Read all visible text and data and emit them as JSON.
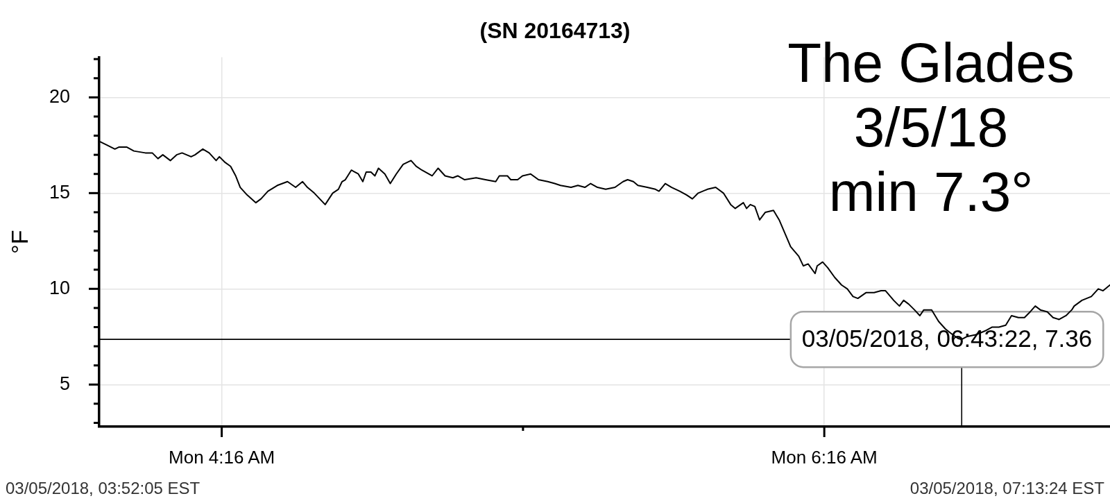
{
  "chart_data": {
    "type": "line",
    "title": "(SN 20164713)",
    "ylabel": "°F",
    "color": "#000000",
    "x": [
      "2018-03-05T03:51:40",
      "2018-03-05T03:53:13",
      "2018-03-05T03:54:43",
      "2018-03-05T03:55:30",
      "2018-03-05T03:57:07",
      "2018-03-05T03:58:30",
      "2018-03-05T04:00:47",
      "2018-03-05T04:02:10",
      "2018-03-05T04:03:18",
      "2018-03-05T04:04:16",
      "2018-03-05T04:05:46",
      "2018-03-05T04:07:01",
      "2018-03-05T04:08:06",
      "2018-03-05T04:09:54",
      "2018-03-05T04:10:41",
      "2018-03-05T04:12:14",
      "2018-03-05T04:13:30",
      "2018-03-05T04:14:53",
      "2018-03-05T04:15:32",
      "2018-03-05T04:16:41",
      "2018-03-05T04:17:46",
      "2018-03-05T04:18:47",
      "2018-03-05T04:19:41",
      "2018-03-05T04:21:04",
      "2018-03-05T04:22:48",
      "2018-03-05T04:23:49",
      "2018-03-05T04:25:12",
      "2018-03-05T04:27:04",
      "2018-03-05T04:29:06",
      "2018-03-05T04:30:43",
      "2018-03-05T04:32:06",
      "2018-03-05T04:33:04",
      "2018-03-05T04:34:26",
      "2018-03-05T04:36:36",
      "2018-03-05T04:38:06",
      "2018-03-05T04:39:14",
      "2018-03-05T04:39:58",
      "2018-03-05T04:40:37",
      "2018-03-05T04:41:49",
      "2018-03-05T04:43:12",
      "2018-03-05T04:44:06",
      "2018-03-05T04:44:46",
      "2018-03-05T04:45:43",
      "2018-03-05T04:46:30",
      "2018-03-05T04:47:13",
      "2018-03-05T04:48:29",
      "2018-03-05T04:49:34",
      "2018-03-05T04:50:46",
      "2018-03-05T04:52:08",
      "2018-03-05T04:53:42",
      "2018-03-05T04:54:43",
      "2018-03-05T04:55:52",
      "2018-03-05T04:57:54",
      "2018-03-05T04:59:06",
      "2018-03-05T05:00:29",
      "2018-03-05T05:02:02",
      "2018-03-05T05:03:00",
      "2018-03-05T05:04:23",
      "2018-03-05T05:06:40",
      "2018-03-05T05:08:31",
      "2018-03-05T05:10:34",
      "2018-03-05T05:11:17",
      "2018-03-05T05:12:54",
      "2018-03-05T05:13:34",
      "2018-03-05T05:14:56",
      "2018-03-05T05:15:54",
      "2018-03-05T05:17:31",
      "2018-03-05T05:19:05",
      "2018-03-05T05:20:56",
      "2018-03-05T05:22:19",
      "2018-03-05T05:23:28",
      "2018-03-05T05:25:34",
      "2018-03-05T05:26:56",
      "2018-03-05T05:28:19",
      "2018-03-05T05:29:28",
      "2018-03-05T05:30:50",
      "2018-03-05T05:32:28",
      "2018-03-05T05:34:19",
      "2018-03-05T05:35:56",
      "2018-03-05T05:36:50",
      "2018-03-05T05:37:59",
      "2018-03-05T05:38:53",
      "2018-03-05T05:40:44",
      "2018-03-05T05:42:22",
      "2018-03-05T05:43:05",
      "2018-03-05T05:44:20",
      "2018-03-05T05:45:36",
      "2018-03-05T05:47:13",
      "2018-03-05T05:48:36",
      "2018-03-05T05:49:44",
      "2018-03-05T05:50:53",
      "2018-03-05T05:52:44",
      "2018-03-05T05:54:22",
      "2018-03-05T05:55:55",
      "2018-03-05T05:57:22",
      "2018-03-05T05:58:16",
      "2018-03-05T05:59:53",
      "2018-03-05T06:00:32",
      "2018-03-05T06:01:16",
      "2018-03-05T06:02:10",
      "2018-03-05T06:03:07",
      "2018-03-05T06:04:16",
      "2018-03-05T06:05:53",
      "2018-03-05T06:07:01",
      "2018-03-05T06:08:10",
      "2018-03-05T06:09:18",
      "2018-03-05T06:10:55",
      "2018-03-05T06:11:49",
      "2018-03-05T06:12:47",
      "2018-03-05T06:14:10",
      "2018-03-05T06:14:35",
      "2018-03-05T06:15:40",
      "2018-03-05T06:16:41",
      "2018-03-05T06:18:04",
      "2018-03-05T06:19:26",
      "2018-03-05T06:20:35",
      "2018-03-05T06:21:43",
      "2018-03-05T06:22:41",
      "2018-03-05T06:24:18",
      "2018-03-05T06:25:55",
      "2018-03-05T06:27:18",
      "2018-03-05T06:28:12",
      "2018-03-05T06:29:49",
      "2018-03-05T06:30:58",
      "2018-03-05T06:31:48",
      "2018-03-05T06:32:49",
      "2018-03-05T06:33:58",
      "2018-03-05T06:35:02",
      "2018-03-05T06:35:49",
      "2018-03-05T06:37:23",
      "2018-03-05T06:38:46",
      "2018-03-05T06:40:08",
      "2018-03-05T06:41:35",
      "2018-03-05T06:42:43",
      "2018-03-05T06:43:22",
      "2018-03-05T06:44:20",
      "2018-03-05T06:46:08",
      "2018-03-05T06:47:06",
      "2018-03-05T06:48:00",
      "2018-03-05T06:49:23",
      "2018-03-05T06:50:46",
      "2018-03-05T06:52:08",
      "2018-03-05T06:53:17",
      "2018-03-05T06:54:40",
      "2018-03-05T06:55:52",
      "2018-03-05T06:57:00",
      "2018-03-05T06:58:01",
      "2018-03-05T06:59:02",
      "2018-03-05T07:00:25",
      "2018-03-05T07:01:34",
      "2018-03-05T07:02:46",
      "2018-03-05T07:04:08",
      "2018-03-05T07:05:17",
      "2018-03-05T07:05:46",
      "2018-03-05T07:07:19",
      "2018-03-05T07:09:11",
      "2018-03-05T07:10:34",
      "2018-03-05T07:11:31",
      "2018-03-05T07:12:54"
    ],
    "values": [
      17.7,
      17.5,
      17.3,
      17.4,
      17.4,
      17.2,
      17.1,
      17.1,
      16.8,
      17.0,
      16.7,
      17.0,
      17.1,
      16.9,
      17.0,
      17.3,
      17.1,
      16.7,
      16.9,
      16.6,
      16.4,
      15.9,
      15.3,
      14.9,
      14.5,
      14.7,
      15.1,
      15.4,
      15.6,
      15.3,
      15.6,
      15.3,
      15.0,
      14.4,
      15.0,
      15.2,
      15.6,
      15.7,
      16.2,
      16.0,
      15.6,
      16.1,
      16.1,
      15.9,
      16.3,
      16.0,
      15.5,
      16.0,
      16.5,
      16.7,
      16.4,
      16.2,
      15.9,
      16.3,
      15.9,
      15.8,
      15.9,
      15.7,
      15.8,
      15.7,
      15.6,
      15.9,
      15.9,
      15.7,
      15.7,
      15.9,
      16.0,
      15.7,
      15.6,
      15.5,
      15.4,
      15.3,
      15.4,
      15.3,
      15.5,
      15.3,
      15.2,
      15.3,
      15.6,
      15.7,
      15.6,
      15.4,
      15.3,
      15.2,
      15.1,
      15.5,
      15.3,
      15.1,
      14.9,
      14.7,
      15.0,
      15.2,
      15.3,
      15.0,
      14.4,
      14.2,
      14.5,
      14.2,
      14.4,
      14.3,
      13.6,
      14.0,
      14.1,
      13.6,
      12.9,
      12.2,
      11.7,
      11.2,
      11.3,
      10.8,
      11.2,
      11.4,
      11.1,
      10.6,
      10.2,
      10.0,
      9.6,
      9.5,
      9.8,
      9.8,
      9.9,
      9.9,
      9.4,
      9.1,
      9.4,
      9.2,
      8.9,
      8.6,
      8.9,
      8.9,
      8.3,
      7.9,
      7.6,
      7.4,
      7.36,
      7.5,
      7.6,
      7.7,
      7.8,
      8.0,
      8.0,
      8.1,
      8.6,
      8.5,
      8.5,
      8.8,
      9.1,
      8.9,
      8.8,
      8.5,
      8.4,
      8.6,
      8.9,
      9.1,
      9.4,
      9.6,
      10.0,
      9.9,
      10.2
    ],
    "xlim": [
      "2018-03-05T03:51:36",
      "2018-03-05T07:12:54"
    ],
    "xticks": [
      {
        "value": "2018-03-05T04:16",
        "label": "Mon 4:16 AM"
      },
      {
        "value": "2018-03-05T05:16",
        "label": null
      },
      {
        "value": "2018-03-05T06:16",
        "label": "Mon 6:16 AM"
      }
    ],
    "ylim": [
      2.8,
      22.1
    ],
    "yticks": [
      {
        "value": 3,
        "label": null
      },
      {
        "value": 4,
        "label": null
      },
      5,
      {
        "value": 6,
        "label": null
      },
      {
        "value": 7,
        "label": null
      },
      {
        "value": 8,
        "label": null
      },
      {
        "value": 9,
        "label": null
      },
      10,
      {
        "value": 11,
        "label": null
      },
      {
        "value": 12,
        "label": null
      },
      {
        "value": 13,
        "label": null
      },
      {
        "value": 14,
        "label": null
      },
      15,
      {
        "value": 16,
        "label": null
      },
      {
        "value": 17,
        "label": null
      },
      {
        "value": 18,
        "label": null
      },
      {
        "value": 19,
        "label": null
      },
      20,
      {
        "value": 21,
        "label": null
      },
      {
        "value": 22,
        "label": null
      }
    ],
    "grid": true,
    "ref_lines": [
      {
        "axis": "y",
        "value": 7.36,
        "color": "#000000"
      },
      {
        "axis": "x",
        "value": "2018-03-05T06:43:22",
        "color": "#000000"
      }
    ],
    "annotations": [
      "The Glades",
      "3/5/18",
      "min 7.3°",
      "03/05/2018, 03:52:05 EST",
      "03/05/2018, 07:13:24 EST",
      {
        "text": "03/05/2018, 06:43:22, 7.36",
        "x": "2018-03-05T06:43:22",
        "y": 7.36
      }
    ]
  }
}
